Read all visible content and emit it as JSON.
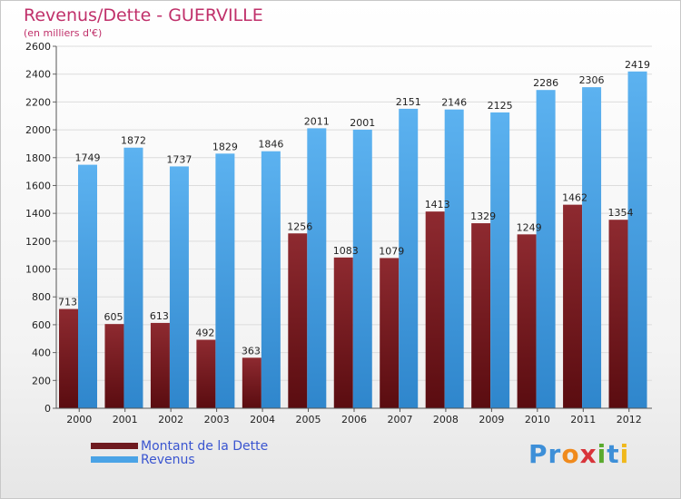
{
  "header": {
    "title": "Revenus/Dette - GUERVILLE",
    "subtitle": "(en milliers d'€)"
  },
  "legend": {
    "items": [
      {
        "label": "Montant de la Dette",
        "color": "#7a1f24"
      },
      {
        "label": "Revenus",
        "color": "#4aa3e6"
      }
    ]
  },
  "logo": {
    "text": "Proxiti",
    "letters": [
      {
        "ch": "P",
        "color": "#3d8fd8"
      },
      {
        "ch": "r",
        "color": "#3d8fd8"
      },
      {
        "ch": "o",
        "color": "#f08a1c"
      },
      {
        "ch": "x",
        "color": "#d8343a"
      },
      {
        "ch": "i",
        "color": "#5aaa2e"
      },
      {
        "ch": "t",
        "color": "#3d8fd8"
      },
      {
        "ch": "i",
        "color": "#f0b81c"
      }
    ]
  },
  "chart_data": {
    "type": "bar",
    "title": "Revenus/Dette - GUERVILLE",
    "subtitle": "(en milliers d'€)",
    "categories": [
      "2000",
      "2001",
      "2002",
      "2003",
      "2004",
      "2005",
      "2006",
      "2007",
      "2008",
      "2009",
      "2010",
      "2011",
      "2012"
    ],
    "series": [
      {
        "name": "Montant de la Dette",
        "color": "#7a1f24",
        "values": [
          713,
          605,
          613,
          492,
          363,
          1256,
          1083,
          1079,
          1413,
          1329,
          1249,
          1462,
          1354
        ]
      },
      {
        "name": "Revenus",
        "color": "#4aa3e6",
        "values": [
          1749,
          1872,
          1737,
          1829,
          1846,
          2011,
          2001,
          2151,
          2146,
          2125,
          2286,
          2306,
          2419
        ]
      }
    ],
    "yticks": [
      "0",
      "200",
      "400",
      "600",
      "800",
      "1000",
      "1200",
      "1400",
      "1600",
      "1800",
      "2000",
      "2200",
      "2400",
      "2600"
    ],
    "ylim": [
      0,
      2600
    ],
    "grid": true,
    "legend_position": "bottom-left"
  }
}
